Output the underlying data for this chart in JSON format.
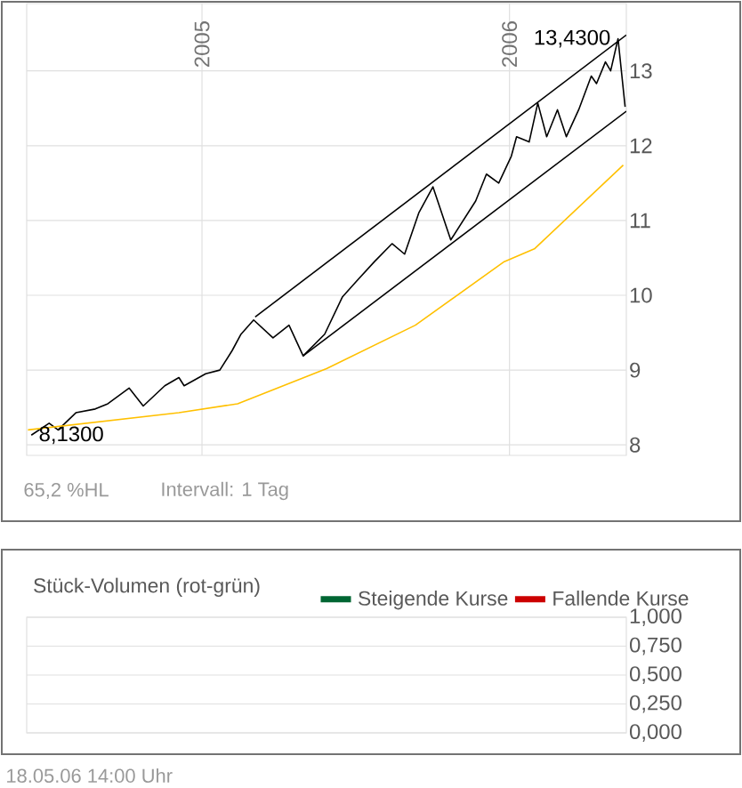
{
  "chart_data": [
    {
      "type": "line",
      "series": [
        {
          "color": "#000000",
          "x": [
            2004.445,
            2004.503,
            2004.532,
            2004.59,
            2004.653,
            2004.694,
            2004.763,
            2004.809,
            2004.879,
            2004.925,
            2004.942,
            2005.012,
            2005.058,
            2005.098,
            2005.127,
            2005.168,
            2005.231,
            2005.283,
            2005.329,
            2005.399,
            2005.457,
            2005.503,
            2005.561,
            2005.618,
            2005.659,
            2005.705,
            2005.751,
            2005.809,
            2005.89,
            2005.925,
            2005.965,
            2006.006,
            2006.023,
            2006.064,
            2006.092,
            2006.121,
            2006.156,
            2006.185,
            2006.225,
            2006.266,
            2006.283,
            2006.312,
            2006.329,
            2006.353,
            2006.376
          ],
          "values": [
            8.13,
            8.29,
            8.2,
            8.43,
            8.48,
            8.55,
            8.76,
            8.52,
            8.79,
            8.9,
            8.79,
            8.95,
            9.0,
            9.26,
            9.48,
            9.67,
            9.43,
            9.6,
            9.19,
            9.48,
            9.98,
            10.19,
            10.45,
            10.69,
            10.55,
            11.1,
            11.45,
            10.74,
            11.26,
            11.62,
            11.5,
            11.86,
            12.12,
            12.05,
            12.57,
            12.12,
            12.48,
            12.12,
            12.48,
            12.93,
            12.83,
            13.12,
            13.0,
            13.43,
            12.52
          ]
        },
        {
          "color": "#ffc000",
          "x": [
            2004.434,
            2004.925,
            2005.116,
            2005.405,
            2005.694,
            2005.983,
            2006.081,
            2006.37
          ],
          "values": [
            8.2,
            8.43,
            8.55,
            9.02,
            9.6,
            10.45,
            10.62,
            11.74
          ]
        },
        {
          "color": "#000000",
          "x": [
            2005.173,
            2006.38
          ],
          "values": [
            9.71,
            13.48
          ]
        },
        {
          "color": "#000000",
          "x": [
            2005.329,
            2006.38
          ],
          "values": [
            9.19,
            12.46
          ]
        }
      ],
      "xlim": [
        2004.43,
        2006.38
      ],
      "xticks": [
        2005,
        2006
      ],
      "ylim": [
        7.86,
        13.9
      ],
      "yticks": [
        8,
        9,
        10,
        11,
        12,
        13
      ],
      "grid": true,
      "annotations": [
        {
          "text": "13,4300",
          "x": 2006.353,
          "y": 13.43
        },
        {
          "text": "8,1300",
          "x": 2004.445,
          "y": 8.13
        },
        "65,2 %HL",
        "Intervall: 1 Tag"
      ]
    },
    {
      "type": "bar",
      "title": "Stück-Volumen (rot-grün)",
      "series": [
        {
          "name": "Steigende Kurse",
          "color": "#006633"
        },
        {
          "name": "Fallende Kurse",
          "color": "#cc0000"
        }
      ],
      "ylim": [
        0,
        1
      ],
      "yticks": [
        {
          "value": 0,
          "label": "0,000"
        },
        {
          "value": 0.25,
          "label": "0,250"
        },
        {
          "value": 0.5,
          "label": "0,500"
        },
        {
          "value": 0.75,
          "label": "0,750"
        },
        {
          "value": 1,
          "label": "1,000"
        }
      ],
      "grid": true,
      "legend": "top right",
      "tick_labels": "y",
      "annotations": [
        "18.05.06 14:00 Uhr"
      ]
    }
  ]
}
